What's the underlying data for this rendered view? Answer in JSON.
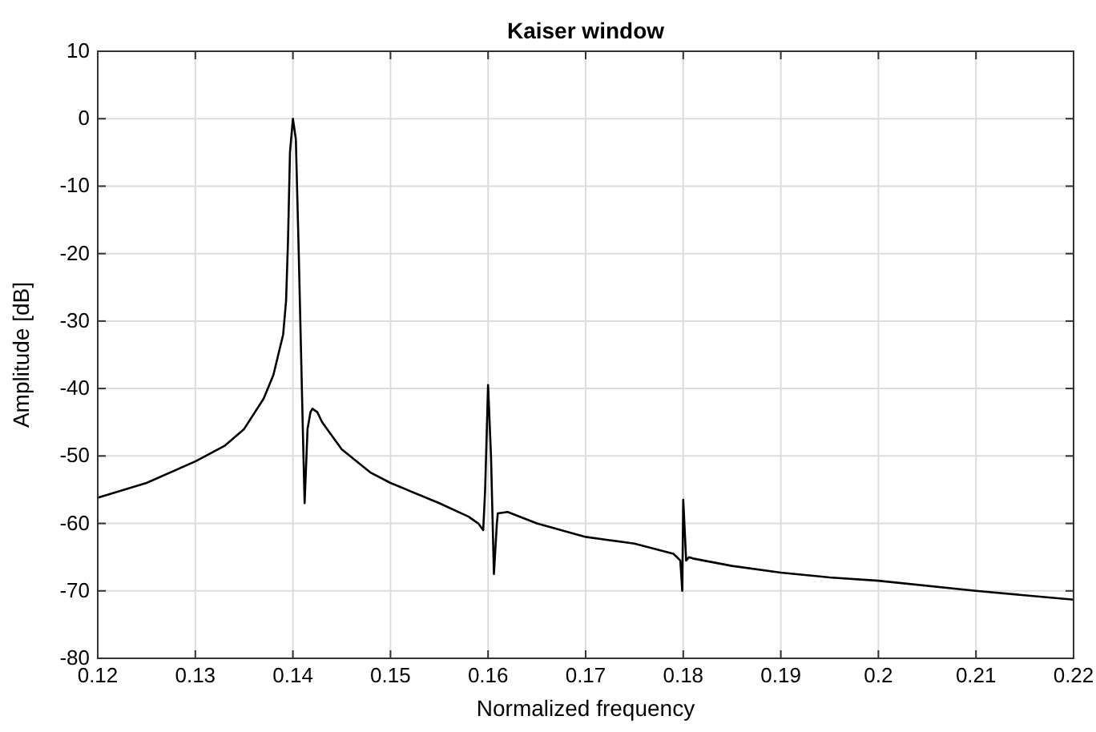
{
  "chart_data": {
    "type": "line",
    "title": "Kaiser window",
    "xlabel": "Normalized frequency",
    "ylabel": "Amplitude [dB]",
    "x": [
      0.12,
      0.125,
      0.13,
      0.133,
      0.135,
      0.137,
      0.138,
      0.139,
      0.1393,
      0.1395,
      0.1397,
      0.14,
      0.1403,
      0.1406,
      0.141,
      0.1412,
      0.1415,
      0.1418,
      0.142,
      0.1425,
      0.143,
      0.145,
      0.148,
      0.15,
      0.155,
      0.158,
      0.159,
      0.1595,
      0.1597,
      0.16,
      0.1603,
      0.1606,
      0.1609,
      0.161,
      0.162,
      0.165,
      0.17,
      0.175,
      0.179,
      0.1797,
      0.1799,
      0.18,
      0.1803,
      0.1806,
      0.181,
      0.185,
      0.19,
      0.195,
      0.2,
      0.21,
      0.22
    ],
    "series": [
      {
        "color": "#000000",
        "values": [
          -56.2,
          -54,
          -50.8,
          -48.5,
          -46,
          -41.5,
          -38,
          -32,
          -27,
          -18,
          -5,
          0,
          -3,
          -20,
          -45,
          -57,
          -46,
          -43.5,
          -43,
          -43.5,
          -45,
          -49,
          -52.5,
          -54,
          -57,
          -59,
          -60,
          -61,
          -55,
          -39.5,
          -50,
          -67.5,
          -60,
          -58.5,
          -58.3,
          -60,
          -62,
          -63,
          -64.5,
          -65.5,
          -70,
          -56.5,
          -65.5,
          -65,
          -65.2,
          -66.3,
          -67.3,
          -68,
          -68.5,
          -70,
          -71.3
        ]
      }
    ],
    "xlim": [
      0.12,
      0.22
    ],
    "xticks": [
      0.12,
      0.13,
      0.14,
      0.15,
      0.16,
      0.17,
      0.18,
      0.19,
      0.2,
      0.21,
      0.22
    ],
    "ylim": [
      -80,
      10
    ],
    "yticks": [
      -80,
      -70,
      -60,
      -50,
      -40,
      -30,
      -20,
      -10,
      0,
      10
    ],
    "grid": true
  }
}
